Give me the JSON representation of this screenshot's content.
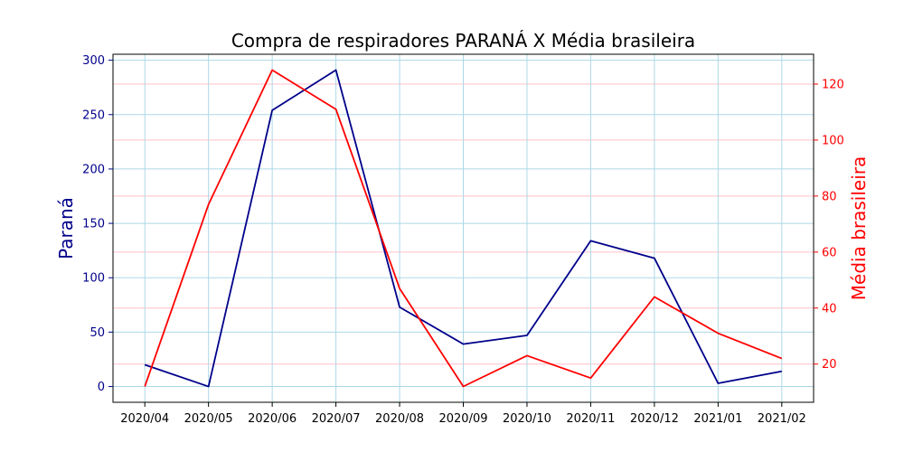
{
  "chart_data": {
    "type": "line",
    "title": "Compra de respiradores PARANÁ X Média brasileira",
    "x": [
      "2020/04",
      "2020/05",
      "2020/06",
      "2020/07",
      "2020/08",
      "2020/09",
      "2020/10",
      "2020/11",
      "2020/12",
      "2021/01",
      "2021/02"
    ],
    "series": [
      {
        "name": "Paraná",
        "axis": "left",
        "color": "#00008b",
        "values": [
          20,
          0,
          254,
          291,
          73,
          39,
          47,
          134,
          118,
          3,
          14
        ]
      },
      {
        "name": "Média brasileira",
        "axis": "right",
        "color": "#ff0000",
        "values": [
          12,
          77,
          125,
          111,
          47,
          12,
          23,
          15,
          44,
          31,
          22
        ]
      }
    ],
    "left_axis": {
      "label": "Paraná",
      "color": "#00008b",
      "ylim": [
        -14.5,
        305.5
      ],
      "ticks": [
        0,
        50,
        100,
        150,
        200,
        250,
        300
      ]
    },
    "right_axis": {
      "label": "Média brasileira",
      "color": "#ff0000",
      "ylim": [
        6.35,
        130.65
      ],
      "ticks": [
        20,
        40,
        60,
        80,
        100,
        120
      ]
    },
    "grid": true,
    "grid_colors": {
      "left": "#add8e6",
      "right": "#ffc0cb"
    }
  }
}
